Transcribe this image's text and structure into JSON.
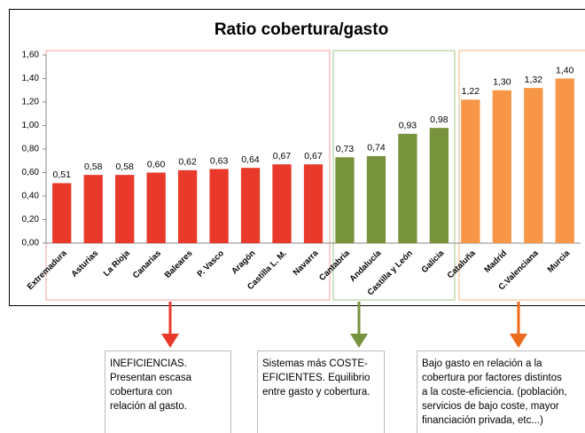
{
  "chart_data": {
    "type": "bar",
    "title": "Ratio cobertura/gasto",
    "categories": [
      "Extremadura",
      "Asturias",
      "La Rioja",
      "Canarias",
      "Baleares",
      "P. Vasco",
      "Aragón",
      "Castilla L. M.",
      "Navarra",
      "Cantabria",
      "Andalucía",
      "Castilla y León",
      "Galicia",
      "Cataluña",
      "Madrid",
      "C.Valenciana",
      "Murcia"
    ],
    "values": [
      0.51,
      0.58,
      0.58,
      0.6,
      0.62,
      0.63,
      0.64,
      0.67,
      0.67,
      0.73,
      0.74,
      0.93,
      0.98,
      1.22,
      1.3,
      1.32,
      1.4
    ],
    "value_labels": [
      "0,51",
      "0,58",
      "0,58",
      "0,60",
      "0,62",
      "0,63",
      "0,64",
      "0,67",
      "0,67",
      "0,73",
      "0,74",
      "0,93",
      "0,98",
      "1,22",
      "1,30",
      "1,32",
      "1,40"
    ],
    "colors": [
      "#e8392a",
      "#e8392a",
      "#e8392a",
      "#e8392a",
      "#e8392a",
      "#e8392a",
      "#e8392a",
      "#e8392a",
      "#e8392a",
      "#77933c",
      "#77933c",
      "#77933c",
      "#77933c",
      "#f79646",
      "#f79646",
      "#f79646",
      "#f79646"
    ],
    "ylim": [
      0,
      1.6
    ],
    "yticks": [
      {
        "value": 0,
        "label": "0,00"
      },
      {
        "value": 0.2,
        "label": "0,20"
      },
      {
        "value": 0.4,
        "label": "0,40"
      },
      {
        "value": 0.6,
        "label": "0,60"
      },
      {
        "value": 0.8,
        "label": "0,80"
      },
      {
        "value": 1.0,
        "label": "1,00"
      },
      {
        "value": 1.2,
        "label": "1,20"
      },
      {
        "value": 1.4,
        "label": "1,40"
      },
      {
        "value": 1.6,
        "label": "1,60"
      }
    ],
    "grid": false,
    "annotations": [
      {
        "lines": [
          "INEFICIENCIAS.",
          "Presentan escasa",
          "cobertura con",
          "relación al gasto."
        ]
      },
      {
        "lines": [
          "Sistemas más COSTE-",
          "EFICIENTES. Equilibrio",
          "entre gasto y cobertura."
        ]
      },
      {
        "lines": [
          "Bajo gasto en relación a la",
          "cobertura por factores distintos",
          "a la coste-eficiencia. (población,",
          "servicios de bajo coste, mayor",
          "financiación privada, etc...)"
        ]
      }
    ]
  }
}
